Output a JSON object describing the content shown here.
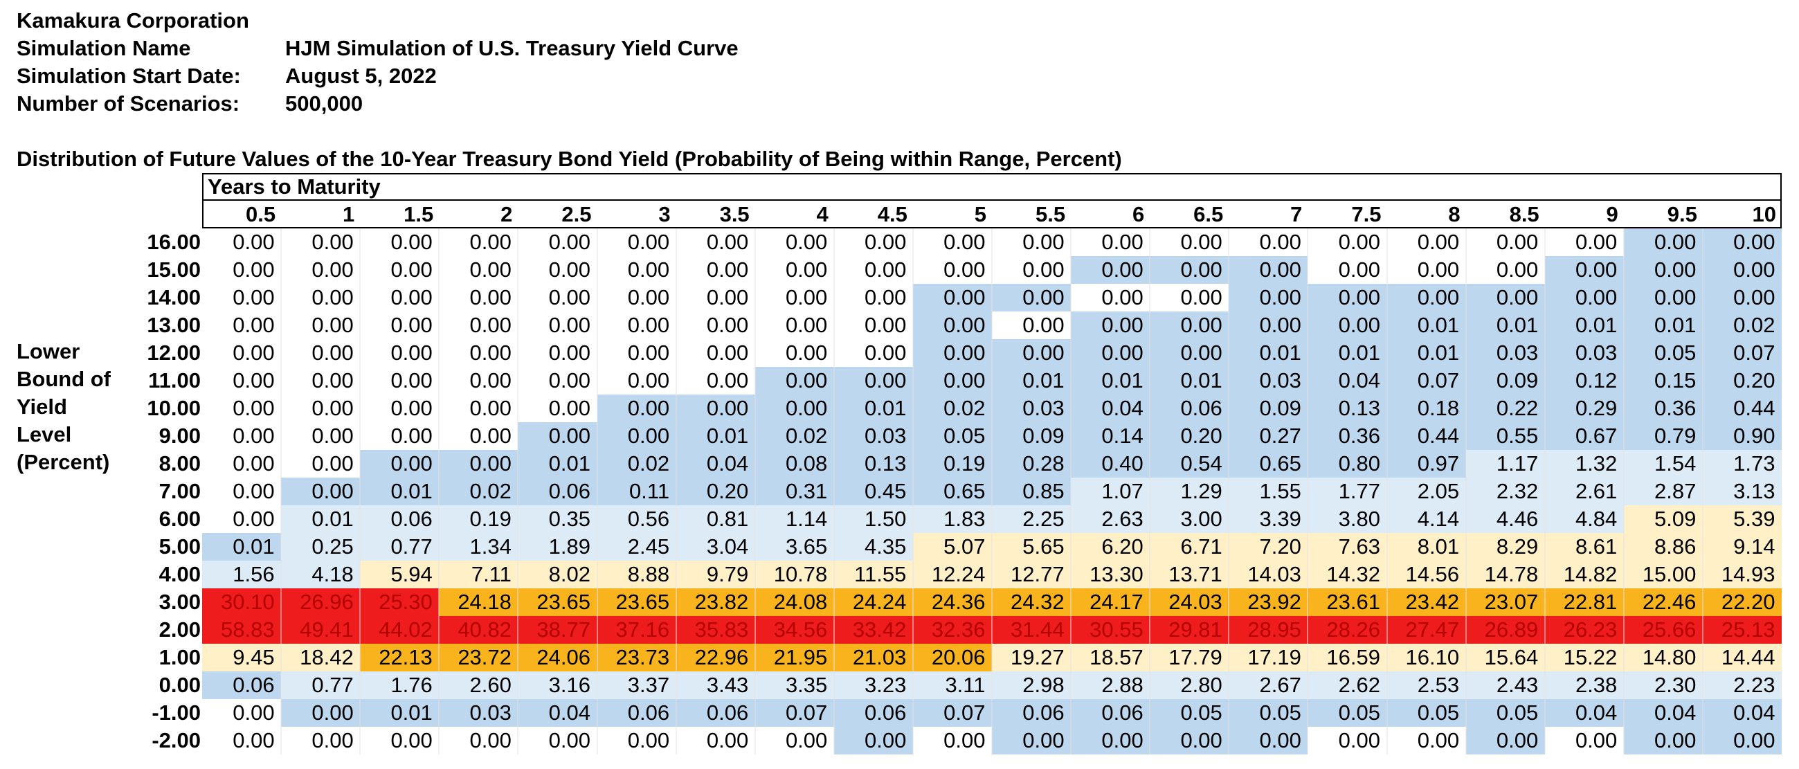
{
  "header": {
    "company": "Kamakura Corporation",
    "rows": [
      {
        "label": "Simulation Name",
        "value": "HJM Simulation of U.S. Treasury Yield Curve"
      },
      {
        "label": "Simulation Start Date:",
        "value": "August 5, 2022"
      },
      {
        "label": "Number of Scenarios:",
        "value": "500,000"
      }
    ]
  },
  "table": {
    "title": "Distribution of Future Values of the 10-Year Treasury Bond Yield (Probability of Being within Range, Percent)",
    "column_group_label": "Years to Maturity",
    "side_label": [
      "Lower",
      "Bound of",
      "Yield",
      "Level",
      "(Percent)"
    ],
    "columns": [
      "0.5",
      "1",
      "1.5",
      "2",
      "2.5",
      "3",
      "3.5",
      "4",
      "4.5",
      "5",
      "5.5",
      "6",
      "6.5",
      "7",
      "7.5",
      "8",
      "8.5",
      "9",
      "9.5",
      "10"
    ],
    "rows": [
      {
        "label": "16.00",
        "values": [
          "0.00",
          "0.00",
          "0.00",
          "0.00",
          "0.00",
          "0.00",
          "0.00",
          "0.00",
          "0.00",
          "0.00",
          "0.00",
          "0.00",
          "0.00",
          "0.00",
          "0.00",
          "0.00",
          "0.00",
          "0.00",
          "0.00",
          "0.00"
        ]
      },
      {
        "label": "15.00",
        "values": [
          "0.00",
          "0.00",
          "0.00",
          "0.00",
          "0.00",
          "0.00",
          "0.00",
          "0.00",
          "0.00",
          "0.00",
          "0.00",
          "0.00",
          "0.00",
          "0.00",
          "0.00",
          "0.00",
          "0.00",
          "0.00",
          "0.00",
          "0.00"
        ]
      },
      {
        "label": "14.00",
        "values": [
          "0.00",
          "0.00",
          "0.00",
          "0.00",
          "0.00",
          "0.00",
          "0.00",
          "0.00",
          "0.00",
          "0.00",
          "0.00",
          "0.00",
          "0.00",
          "0.00",
          "0.00",
          "0.00",
          "0.00",
          "0.00",
          "0.00",
          "0.00"
        ]
      },
      {
        "label": "13.00",
        "values": [
          "0.00",
          "0.00",
          "0.00",
          "0.00",
          "0.00",
          "0.00",
          "0.00",
          "0.00",
          "0.00",
          "0.00",
          "0.00",
          "0.00",
          "0.00",
          "0.00",
          "0.00",
          "0.01",
          "0.01",
          "0.01",
          "0.01",
          "0.02"
        ]
      },
      {
        "label": "12.00",
        "values": [
          "0.00",
          "0.00",
          "0.00",
          "0.00",
          "0.00",
          "0.00",
          "0.00",
          "0.00",
          "0.00",
          "0.00",
          "0.00",
          "0.00",
          "0.00",
          "0.01",
          "0.01",
          "0.01",
          "0.03",
          "0.03",
          "0.05",
          "0.07"
        ]
      },
      {
        "label": "11.00",
        "values": [
          "0.00",
          "0.00",
          "0.00",
          "0.00",
          "0.00",
          "0.00",
          "0.00",
          "0.00",
          "0.00",
          "0.00",
          "0.01",
          "0.01",
          "0.01",
          "0.03",
          "0.04",
          "0.07",
          "0.09",
          "0.12",
          "0.15",
          "0.20"
        ]
      },
      {
        "label": "10.00",
        "values": [
          "0.00",
          "0.00",
          "0.00",
          "0.00",
          "0.00",
          "0.00",
          "0.00",
          "0.00",
          "0.01",
          "0.02",
          "0.03",
          "0.04",
          "0.06",
          "0.09",
          "0.13",
          "0.18",
          "0.22",
          "0.29",
          "0.36",
          "0.44"
        ]
      },
      {
        "label": "9.00",
        "values": [
          "0.00",
          "0.00",
          "0.00",
          "0.00",
          "0.00",
          "0.00",
          "0.01",
          "0.02",
          "0.03",
          "0.05",
          "0.09",
          "0.14",
          "0.20",
          "0.27",
          "0.36",
          "0.44",
          "0.55",
          "0.67",
          "0.79",
          "0.90"
        ]
      },
      {
        "label": "8.00",
        "values": [
          "0.00",
          "0.00",
          "0.00",
          "0.00",
          "0.01",
          "0.02",
          "0.04",
          "0.08",
          "0.13",
          "0.19",
          "0.28",
          "0.40",
          "0.54",
          "0.65",
          "0.80",
          "0.97",
          "1.17",
          "1.32",
          "1.54",
          "1.73"
        ]
      },
      {
        "label": "7.00",
        "values": [
          "0.00",
          "0.00",
          "0.01",
          "0.02",
          "0.06",
          "0.11",
          "0.20",
          "0.31",
          "0.45",
          "0.65",
          "0.85",
          "1.07",
          "1.29",
          "1.55",
          "1.77",
          "2.05",
          "2.32",
          "2.61",
          "2.87",
          "3.13"
        ]
      },
      {
        "label": "6.00",
        "values": [
          "0.00",
          "0.01",
          "0.06",
          "0.19",
          "0.35",
          "0.56",
          "0.81",
          "1.14",
          "1.50",
          "1.83",
          "2.25",
          "2.63",
          "3.00",
          "3.39",
          "3.80",
          "4.14",
          "4.46",
          "4.84",
          "5.09",
          "5.39"
        ]
      },
      {
        "label": "5.00",
        "values": [
          "0.01",
          "0.25",
          "0.77",
          "1.34",
          "1.89",
          "2.45",
          "3.04",
          "3.65",
          "4.35",
          "5.07",
          "5.65",
          "6.20",
          "6.71",
          "7.20",
          "7.63",
          "8.01",
          "8.29",
          "8.61",
          "8.86",
          "9.14"
        ]
      },
      {
        "label": "4.00",
        "values": [
          "1.56",
          "4.18",
          "5.94",
          "7.11",
          "8.02",
          "8.88",
          "9.79",
          "10.78",
          "11.55",
          "12.24",
          "12.77",
          "13.30",
          "13.71",
          "14.03",
          "14.32",
          "14.56",
          "14.78",
          "14.82",
          "15.00",
          "14.93"
        ]
      },
      {
        "label": "3.00",
        "values": [
          "30.10",
          "26.96",
          "25.30",
          "24.18",
          "23.65",
          "23.65",
          "23.82",
          "24.08",
          "24.24",
          "24.36",
          "24.32",
          "24.17",
          "24.03",
          "23.92",
          "23.61",
          "23.42",
          "23.07",
          "22.81",
          "22.46",
          "22.20"
        ]
      },
      {
        "label": "2.00",
        "values": [
          "58.83",
          "49.41",
          "44.02",
          "40.82",
          "38.77",
          "37.16",
          "35.83",
          "34.56",
          "33.42",
          "32.36",
          "31.44",
          "30.55",
          "29.81",
          "28.95",
          "28.26",
          "27.47",
          "26.89",
          "26.23",
          "25.66",
          "25.13"
        ]
      },
      {
        "label": "1.00",
        "values": [
          "9.45",
          "18.42",
          "22.13",
          "23.72",
          "24.06",
          "23.73",
          "22.96",
          "21.95",
          "21.03",
          "20.06",
          "19.27",
          "18.57",
          "17.79",
          "17.19",
          "16.59",
          "16.10",
          "15.64",
          "15.22",
          "14.80",
          "14.44"
        ]
      },
      {
        "label": "0.00",
        "values": [
          "0.06",
          "0.77",
          "1.76",
          "2.60",
          "3.16",
          "3.37",
          "3.43",
          "3.35",
          "3.23",
          "3.11",
          "2.98",
          "2.88",
          "2.80",
          "2.67",
          "2.62",
          "2.53",
          "2.43",
          "2.38",
          "2.30",
          "2.23"
        ]
      },
      {
        "label": "-1.00",
        "values": [
          "0.00",
          "0.00",
          "0.01",
          "0.03",
          "0.04",
          "0.06",
          "0.06",
          "0.07",
          "0.06",
          "0.07",
          "0.06",
          "0.06",
          "0.05",
          "0.05",
          "0.05",
          "0.05",
          "0.05",
          "0.04",
          "0.04",
          "0.04"
        ]
      },
      {
        "label": "-2.00",
        "values": [
          "0.00",
          "0.00",
          "0.00",
          "0.00",
          "0.00",
          "0.00",
          "0.00",
          "0.00",
          "0.00",
          "0.00",
          "0.00",
          "0.00",
          "0.00",
          "0.00",
          "0.00",
          "0.00",
          "0.00",
          "0.00",
          "0.00",
          "0.00"
        ]
      }
    ],
    "heatmap_colors": {
      "red": "#ee1c1c",
      "orange": "#f9b31c",
      "light_yellow": "#fff0c8",
      "light_blue": "#ddebf7",
      "blue": "#bdd7ee",
      "white": "#ffffff",
      "red_text": "#b50000"
    }
  }
}
